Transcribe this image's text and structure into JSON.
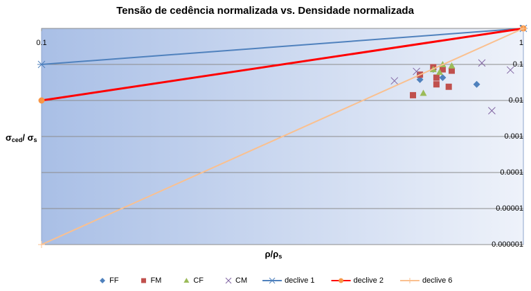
{
  "chart_data": {
    "type": "scatter",
    "title": "Tensão de cedência normalizada vs. Densidade normalizada",
    "x_label_parts": [
      "ρ/ρ",
      "s"
    ],
    "y_label_parts": [
      "σ",
      "ced",
      "/ σ",
      "s"
    ],
    "x_log": true,
    "y_log": true,
    "xlim": [
      0.1,
      1
    ],
    "ylim": [
      1e-06,
      1
    ],
    "xticks": [
      0.1,
      1
    ],
    "yticks": [
      1,
      0.1,
      0.01,
      0.001,
      0.0001,
      1e-05,
      1e-06
    ],
    "grid": true,
    "legend": "bottom",
    "series": [
      {
        "name": "FF",
        "color": "#4f81bd",
        "marker": "diamond",
        "line": false,
        "x": [
          0.61,
          0.65,
          0.68,
          0.8
        ],
        "values": [
          0.038,
          0.073,
          0.043,
          0.028
        ]
      },
      {
        "name": "FM",
        "color": "#c0504d",
        "marker": "square",
        "line": false,
        "x": [
          0.59,
          0.61,
          0.65,
          0.66,
          0.66,
          0.68,
          0.7,
          0.71
        ],
        "values": [
          0.014,
          0.052,
          0.084,
          0.043,
          0.028,
          0.073,
          0.024,
          0.067
        ]
      },
      {
        "name": "CF",
        "color": "#9bbb59",
        "marker": "triangle",
        "line": false,
        "x": [
          0.62,
          0.65,
          0.67,
          0.68,
          0.71
        ],
        "values": [
          0.016,
          0.073,
          0.061,
          0.1,
          0.092
        ]
      },
      {
        "name": "CM",
        "color": "#8064a2",
        "marker": "x",
        "line": false,
        "x": [
          0.54,
          0.6,
          0.82,
          0.86,
          0.94
        ],
        "values": [
          0.035,
          0.064,
          0.11,
          0.0052,
          0.07
        ]
      },
      {
        "name": "declive 1",
        "color": "#4f81bd",
        "marker": "star",
        "line": true,
        "x": [
          0.1,
          1
        ],
        "values": [
          0.1,
          1
        ]
      },
      {
        "name": "declive 2",
        "color": "#ff0000",
        "marker_color": "#f79646",
        "marker": "circle",
        "line": true,
        "x": [
          0.1,
          1
        ],
        "values": [
          0.01,
          1
        ]
      },
      {
        "name": "declive 6",
        "color": "#fac08f",
        "marker": "plus",
        "line": true,
        "x": [
          0.1,
          1
        ],
        "values": [
          1e-06,
          1
        ]
      }
    ]
  }
}
